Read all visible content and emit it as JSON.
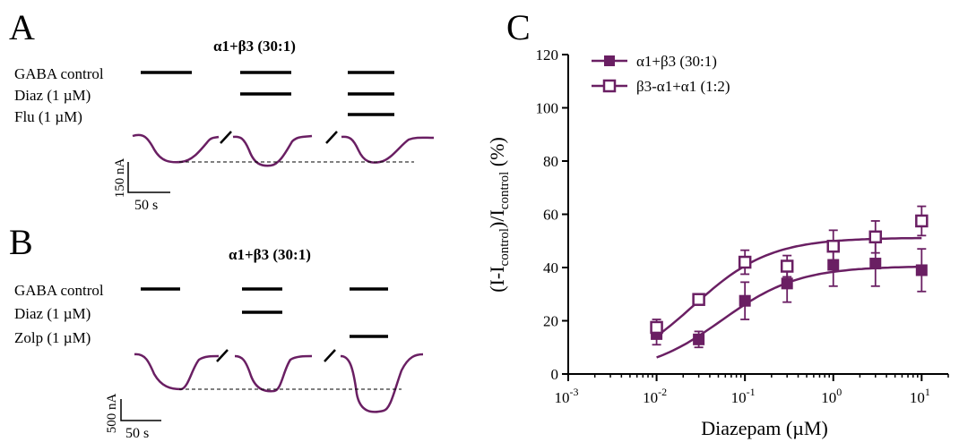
{
  "colors": {
    "trace": "#6a1f63",
    "series": "#6a1f63",
    "ink": "#000000",
    "dash": "#000000"
  },
  "panel_a": {
    "letter": "A",
    "title": "α1+β3 (30:1)",
    "rows": [
      "GABA control",
      "Diaz (1 µM)",
      "Flu (1 µM)"
    ],
    "scale_y": "150 nA",
    "scale_x": "50 s"
  },
  "panel_b": {
    "letter": "B",
    "title": "α1+β3 (30:1)",
    "rows": [
      "GABA control",
      "Diaz (1 µM)",
      "Zolp (1 µM)"
    ],
    "scale_y": "500 nA",
    "scale_x": "50 s"
  },
  "panel_c": {
    "letter": "C"
  },
  "chart_data": {
    "type": "scatter",
    "x_scale": "log",
    "xlabel_main": "Diazepam (",
    "xlabel_unit": "µM",
    "xlabel_end": ")",
    "ylabel_parts": [
      "(I-I",
      "control",
      ")/I",
      "control",
      " (%)"
    ],
    "xlim": [
      0.001,
      20
    ],
    "ylim": [
      0,
      120
    ],
    "x_ticks": [
      {
        "value": 0.001,
        "base": "10",
        "exp": "-3"
      },
      {
        "value": 0.01,
        "base": "10",
        "exp": "-2"
      },
      {
        "value": 0.1,
        "base": "10",
        "exp": "-1"
      },
      {
        "value": 1,
        "base": "10",
        "exp": "0"
      },
      {
        "value": 10,
        "base": "10",
        "exp": "1"
      }
    ],
    "y_ticks": [
      0,
      20,
      40,
      60,
      80,
      100,
      120
    ],
    "legend_position": "top-left",
    "series": [
      {
        "name": "α1+β3 (30:1)",
        "marker": "filled-square",
        "x": [
          0.01,
          0.03,
          0.1,
          0.3,
          1,
          3,
          10
        ],
        "y": [
          15,
          13,
          27.5,
          34,
          41,
          41.5,
          39
        ],
        "err": [
          4,
          3,
          7,
          7,
          8,
          8.5,
          8
        ],
        "fit": {
          "bottom": 0,
          "top": 40.5,
          "ec50": 0.055
        }
      },
      {
        "name": "β3-α1+α1 (1:2)",
        "marker": "open-square",
        "x": [
          0.01,
          0.03,
          0.1,
          0.3,
          1,
          3,
          10
        ],
        "y": [
          17.5,
          28,
          42,
          40.5,
          48,
          51.5,
          57.5
        ],
        "err": [
          3,
          2,
          4.5,
          4,
          6,
          6,
          5.5
        ],
        "fit": {
          "bottom": 0,
          "top": 51.2,
          "ec50": 0.026
        }
      }
    ]
  }
}
